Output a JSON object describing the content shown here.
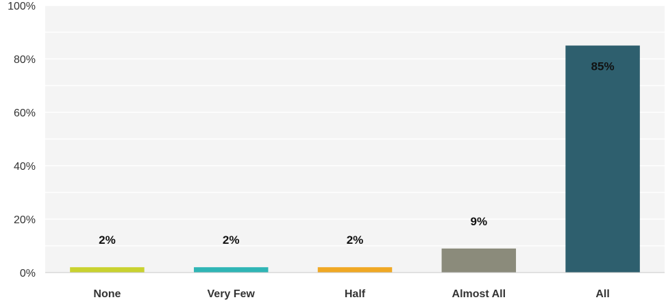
{
  "chart_data": {
    "type": "bar",
    "categories": [
      "None",
      "Very Few",
      "Half",
      "Almost All",
      "All"
    ],
    "values": [
      2,
      2,
      2,
      9,
      85
    ],
    "data_labels": [
      "2%",
      "2%",
      "2%",
      "9%",
      "85%"
    ],
    "colors": [
      "#c9d22f",
      "#2fb5b5",
      "#f0a824",
      "#8b8b7b",
      "#2e5f6e"
    ],
    "ylim": [
      0,
      100
    ],
    "yticks": [
      0,
      20,
      40,
      60,
      80,
      100
    ],
    "ytick_labels": [
      "0%",
      "20%",
      "40%",
      "60%",
      "80%",
      "100%"
    ],
    "grid": true,
    "background": "#f4f4f4",
    "title": "",
    "xlabel": "",
    "ylabel": ""
  }
}
